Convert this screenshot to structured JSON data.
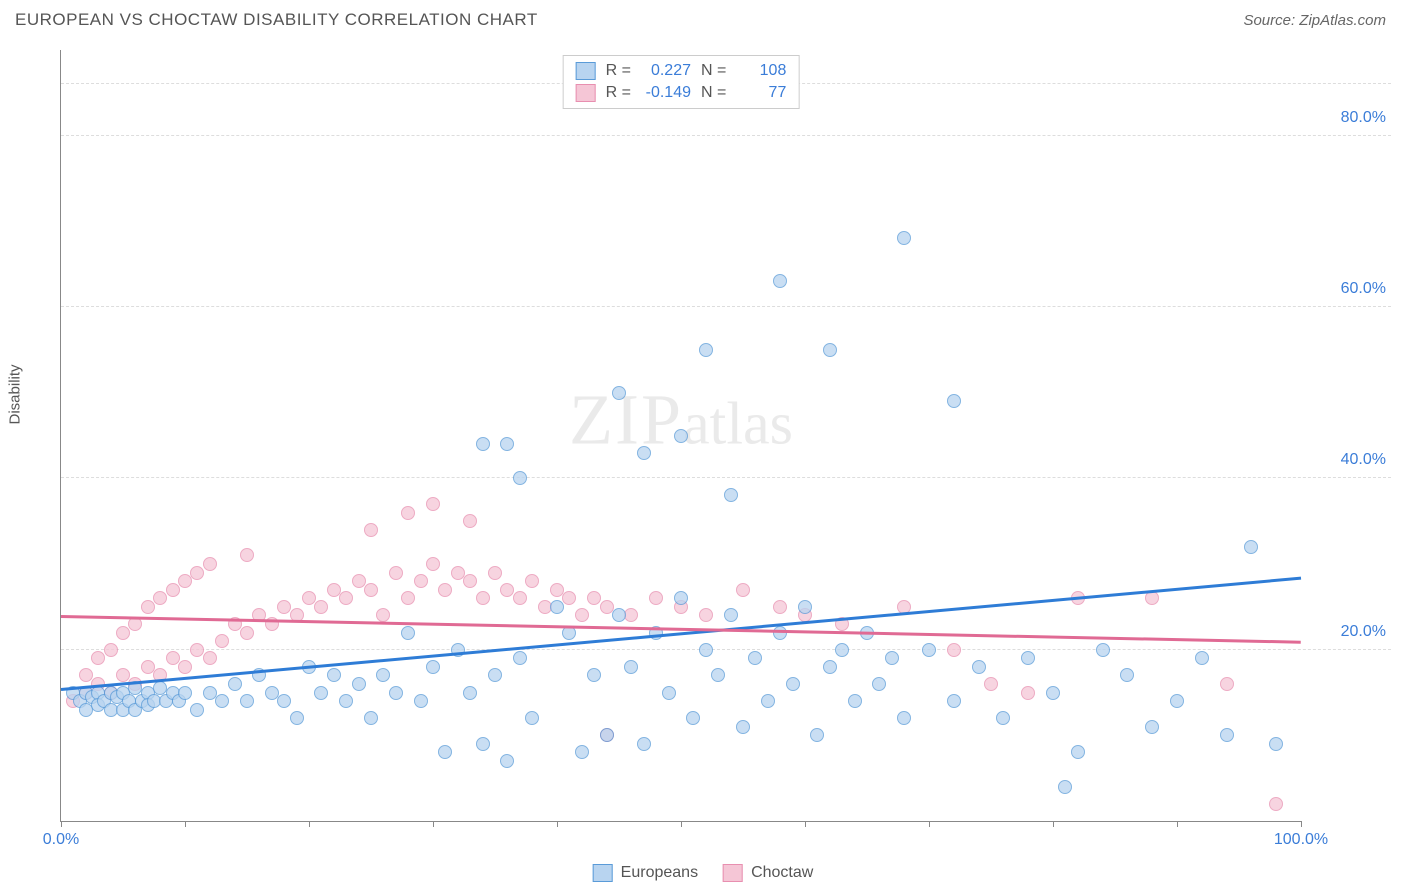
{
  "title": "EUROPEAN VS CHOCTAW DISABILITY CORRELATION CHART",
  "source_label": "Source: ZipAtlas.com",
  "y_axis_label": "Disability",
  "watermark": {
    "zip": "ZIP",
    "atlas": "atlas"
  },
  "chart": {
    "type": "scatter",
    "xlim": [
      0,
      100
    ],
    "ylim": [
      0,
      90
    ],
    "x_tick_labels": {
      "0": "0.0%",
      "100": "100.0%"
    },
    "x_tick_positions": [
      0,
      10,
      20,
      30,
      40,
      50,
      60,
      70,
      80,
      90,
      100
    ],
    "y_ticks": [
      {
        "value": 20,
        "label": "20.0%"
      },
      {
        "value": 40,
        "label": "40.0%"
      },
      {
        "value": 60,
        "label": "60.0%"
      },
      {
        "value": 80,
        "label": "80.0%"
      }
    ],
    "grid_color": "#dddddd",
    "background_color": "#ffffff",
    "marker_size": 14,
    "series": [
      {
        "name": "Europeans",
        "label": "Europeans",
        "color_fill": "#b8d4f0",
        "color_stroke": "#5a9bd8",
        "R": "0.227",
        "N": "108",
        "trend": {
          "x1": 0,
          "y1": 15.5,
          "x2": 100,
          "y2": 28.5,
          "color": "#2e7cd6",
          "width": 3
        },
        "points": [
          [
            1,
            15
          ],
          [
            1.5,
            14
          ],
          [
            2,
            15
          ],
          [
            2,
            13
          ],
          [
            2.5,
            14.5
          ],
          [
            3,
            15
          ],
          [
            3,
            13.5
          ],
          [
            3.5,
            14
          ],
          [
            4,
            15
          ],
          [
            4,
            13
          ],
          [
            4.5,
            14.5
          ],
          [
            5,
            15
          ],
          [
            5,
            13
          ],
          [
            5.5,
            14
          ],
          [
            6,
            15.5
          ],
          [
            6,
            13
          ],
          [
            6.5,
            14
          ],
          [
            7,
            15
          ],
          [
            7,
            13.5
          ],
          [
            7.5,
            14
          ],
          [
            8,
            15.5
          ],
          [
            8.5,
            14
          ],
          [
            9,
            15
          ],
          [
            9.5,
            14
          ],
          [
            10,
            15
          ],
          [
            11,
            13
          ],
          [
            12,
            15
          ],
          [
            13,
            14
          ],
          [
            14,
            16
          ],
          [
            15,
            14
          ],
          [
            16,
            17
          ],
          [
            17,
            15
          ],
          [
            18,
            14
          ],
          [
            19,
            12
          ],
          [
            20,
            18
          ],
          [
            21,
            15
          ],
          [
            22,
            17
          ],
          [
            23,
            14
          ],
          [
            24,
            16
          ],
          [
            25,
            12
          ],
          [
            26,
            17
          ],
          [
            27,
            15
          ],
          [
            28,
            22
          ],
          [
            29,
            14
          ],
          [
            30,
            18
          ],
          [
            31,
            8
          ],
          [
            32,
            20
          ],
          [
            33,
            15
          ],
          [
            34,
            9
          ],
          [
            35,
            17
          ],
          [
            36,
            7
          ],
          [
            37,
            19
          ],
          [
            38,
            12
          ],
          [
            40,
            25
          ],
          [
            41,
            22
          ],
          [
            42,
            8
          ],
          [
            43,
            17
          ],
          [
            44,
            10
          ],
          [
            45,
            24
          ],
          [
            46,
            18
          ],
          [
            47,
            9
          ],
          [
            48,
            22
          ],
          [
            49,
            15
          ],
          [
            50,
            26
          ],
          [
            51,
            12
          ],
          [
            52,
            20
          ],
          [
            53,
            17
          ],
          [
            54,
            24
          ],
          [
            55,
            11
          ],
          [
            56,
            19
          ],
          [
            57,
            14
          ],
          [
            58,
            22
          ],
          [
            59,
            16
          ],
          [
            60,
            25
          ],
          [
            61,
            10
          ],
          [
            62,
            18
          ],
          [
            63,
            20
          ],
          [
            64,
            14
          ],
          [
            65,
            22
          ],
          [
            66,
            16
          ],
          [
            67,
            19
          ],
          [
            68,
            12
          ],
          [
            34,
            44
          ],
          [
            36,
            44
          ],
          [
            37,
            40
          ],
          [
            45,
            50
          ],
          [
            47,
            43
          ],
          [
            50,
            45
          ],
          [
            52,
            55
          ],
          [
            54,
            38
          ],
          [
            58,
            63
          ],
          [
            62,
            55
          ],
          [
            68,
            68
          ],
          [
            72,
            49
          ],
          [
            70,
            20
          ],
          [
            72,
            14
          ],
          [
            74,
            18
          ],
          [
            76,
            12
          ],
          [
            78,
            19
          ],
          [
            80,
            15
          ],
          [
            82,
            8
          ],
          [
            84,
            20
          ],
          [
            86,
            17
          ],
          [
            88,
            11
          ],
          [
            90,
            14
          ],
          [
            92,
            19
          ],
          [
            94,
            10
          ],
          [
            96,
            32
          ],
          [
            98,
            9
          ],
          [
            81,
            4
          ]
        ]
      },
      {
        "name": "Choctaw",
        "label": "Choctaw",
        "color_fill": "#f5c6d6",
        "color_stroke": "#e88fb0",
        "R": "-0.149",
        "N": "77",
        "trend": {
          "x1": 0,
          "y1": 24,
          "x2": 100,
          "y2": 21,
          "color": "#e06a94",
          "width": 3
        },
        "points": [
          [
            1,
            14
          ],
          [
            2,
            15
          ],
          [
            2,
            17
          ],
          [
            3,
            16
          ],
          [
            3,
            19
          ],
          [
            4,
            15
          ],
          [
            4,
            20
          ],
          [
            5,
            17
          ],
          [
            5,
            22
          ],
          [
            6,
            16
          ],
          [
            6,
            23
          ],
          [
            7,
            18
          ],
          [
            7,
            25
          ],
          [
            8,
            17
          ],
          [
            8,
            26
          ],
          [
            9,
            19
          ],
          [
            9,
            27
          ],
          [
            10,
            18
          ],
          [
            10,
            28
          ],
          [
            11,
            20
          ],
          [
            11,
            29
          ],
          [
            12,
            19
          ],
          [
            12,
            30
          ],
          [
            13,
            21
          ],
          [
            14,
            23
          ],
          [
            15,
            22
          ],
          [
            15,
            31
          ],
          [
            16,
            24
          ],
          [
            17,
            23
          ],
          [
            18,
            25
          ],
          [
            19,
            24
          ],
          [
            20,
            26
          ],
          [
            21,
            25
          ],
          [
            22,
            27
          ],
          [
            23,
            26
          ],
          [
            24,
            28
          ],
          [
            25,
            27
          ],
          [
            25,
            34
          ],
          [
            26,
            24
          ],
          [
            27,
            29
          ],
          [
            28,
            26
          ],
          [
            28,
            36
          ],
          [
            29,
            28
          ],
          [
            30,
            30
          ],
          [
            30,
            37
          ],
          [
            31,
            27
          ],
          [
            32,
            29
          ],
          [
            33,
            28
          ],
          [
            33,
            35
          ],
          [
            34,
            26
          ],
          [
            35,
            29
          ],
          [
            36,
            27
          ],
          [
            37,
            26
          ],
          [
            38,
            28
          ],
          [
            39,
            25
          ],
          [
            40,
            27
          ],
          [
            41,
            26
          ],
          [
            42,
            24
          ],
          [
            43,
            26
          ],
          [
            44,
            25
          ],
          [
            46,
            24
          ],
          [
            48,
            26
          ],
          [
            50,
            25
          ],
          [
            52,
            24
          ],
          [
            55,
            27
          ],
          [
            58,
            25
          ],
          [
            60,
            24
          ],
          [
            63,
            23
          ],
          [
            44,
            10
          ],
          [
            68,
            25
          ],
          [
            72,
            20
          ],
          [
            75,
            16
          ],
          [
            78,
            15
          ],
          [
            82,
            26
          ],
          [
            88,
            26
          ],
          [
            94,
            16
          ],
          [
            98,
            2
          ]
        ]
      }
    ]
  },
  "stats_legend": {
    "R_label": "R =",
    "N_label": "N ="
  },
  "bottom_legend": {
    "series1_label": "Europeans",
    "series2_label": "Choctaw"
  }
}
